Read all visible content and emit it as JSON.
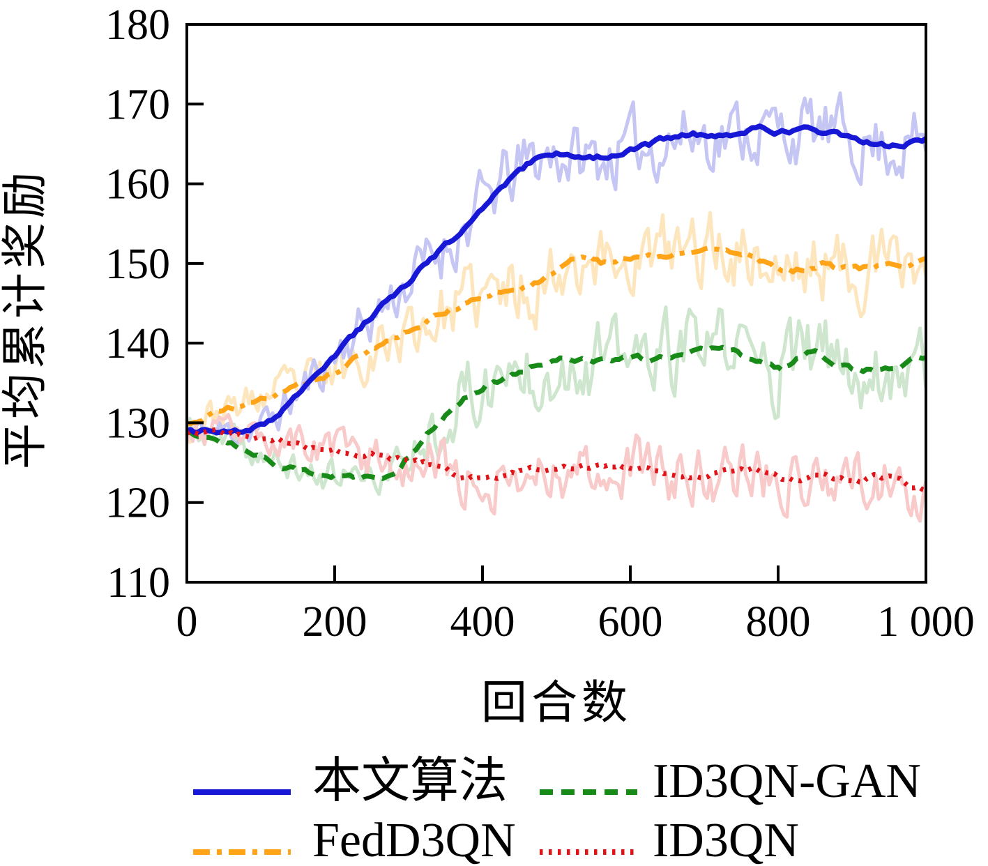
{
  "chart_data": {
    "type": "line",
    "title": "",
    "xlabel": "回合数",
    "ylabel": "平均累计奖励",
    "xlim": [
      0,
      1000
    ],
    "ylim": [
      110,
      180
    ],
    "grid": false,
    "frame": "full-box",
    "legend_position": "below-two-columns",
    "xticks": {
      "values": [
        0,
        200,
        400,
        600,
        800,
        1000
      ],
      "labels": [
        "0",
        "200",
        "400",
        "600",
        "800",
        "1 000"
      ]
    },
    "yticks": {
      "values": [
        110,
        120,
        130,
        140,
        150,
        160,
        170,
        180
      ],
      "labels": [
        "110",
        "120",
        "130",
        "140",
        "150",
        "160",
        "170",
        "180"
      ]
    },
    "series": [
      {
        "name": "本文算法",
        "style": "solid",
        "color": "#1717d6",
        "raw_color": "#c5c6f3",
        "keypoints": [
          [
            0,
            128.8
          ],
          [
            40,
            128.9
          ],
          [
            80,
            129.0
          ],
          [
            100,
            129.6
          ],
          [
            120,
            130.9
          ],
          [
            140,
            132.6
          ],
          [
            160,
            134.6
          ],
          [
            180,
            136.6
          ],
          [
            200,
            138.6
          ],
          [
            220,
            140.6
          ],
          [
            240,
            142.4
          ],
          [
            260,
            144.2
          ],
          [
            280,
            145.9
          ],
          [
            300,
            147.7
          ],
          [
            320,
            149.6
          ],
          [
            340,
            151.4
          ],
          [
            360,
            153.2
          ],
          [
            380,
            155.1
          ],
          [
            400,
            157.2
          ],
          [
            420,
            159.4
          ],
          [
            440,
            161.0
          ],
          [
            460,
            162.4
          ],
          [
            480,
            163.4
          ],
          [
            500,
            163.9
          ],
          [
            520,
            163.5
          ],
          [
            540,
            163.0
          ],
          [
            560,
            163.3
          ],
          [
            580,
            163.7
          ],
          [
            600,
            164.2
          ],
          [
            625,
            164.8
          ],
          [
            650,
            165.6
          ],
          [
            675,
            166.1
          ],
          [
            700,
            166.3
          ],
          [
            720,
            166.1
          ],
          [
            740,
            166.4
          ],
          [
            760,
            166.8
          ],
          [
            780,
            167.0
          ],
          [
            800,
            166.5
          ],
          [
            820,
            166.6
          ],
          [
            840,
            166.8
          ],
          [
            860,
            166.6
          ],
          [
            880,
            166.1
          ],
          [
            900,
            165.6
          ],
          [
            920,
            165.2
          ],
          [
            940,
            164.9
          ],
          [
            960,
            164.8
          ],
          [
            980,
            165.0
          ],
          [
            1000,
            165.5
          ]
        ],
        "raw_band": {
          "amp_start": 2.0,
          "amp_end": 4.3,
          "ramp": [
            80,
            380
          ]
        }
      },
      {
        "name": "FedD3QN",
        "style": "dashdot",
        "color": "#ffa417",
        "raw_color": "#fde6bd",
        "keypoints": [
          [
            0,
            129.8
          ],
          [
            40,
            131.1
          ],
          [
            80,
            132.4
          ],
          [
            120,
            133.7
          ],
          [
            160,
            134.8
          ],
          [
            200,
            136.2
          ],
          [
            230,
            138.2
          ],
          [
            250,
            139.5
          ],
          [
            280,
            140.5
          ],
          [
            310,
            141.9
          ],
          [
            340,
            143.5
          ],
          [
            370,
            144.7
          ],
          [
            400,
            145.6
          ],
          [
            430,
            146.4
          ],
          [
            460,
            147.1
          ],
          [
            480,
            147.8
          ],
          [
            500,
            149.2
          ],
          [
            515,
            150.6
          ],
          [
            530,
            151.2
          ],
          [
            545,
            151.0
          ],
          [
            560,
            150.3
          ],
          [
            580,
            150.4
          ],
          [
            600,
            150.8
          ],
          [
            620,
            151.0
          ],
          [
            640,
            150.8
          ],
          [
            660,
            151.4
          ],
          [
            680,
            151.5
          ],
          [
            700,
            151.9
          ],
          [
            720,
            152.2
          ],
          [
            740,
            151.7
          ],
          [
            760,
            151.2
          ],
          [
            780,
            150.1
          ],
          [
            800,
            149.1
          ],
          [
            820,
            148.9
          ],
          [
            840,
            149.4
          ],
          [
            860,
            150.0
          ],
          [
            880,
            149.3
          ],
          [
            900,
            149.7
          ],
          [
            920,
            149.4
          ],
          [
            940,
            149.7
          ],
          [
            960,
            149.5
          ],
          [
            980,
            150.0
          ],
          [
            1000,
            150.5
          ]
        ],
        "raw_band": {
          "amp_start": 2.2,
          "amp_end": 4.6,
          "ramp": [
            80,
            420
          ]
        }
      },
      {
        "name": "ID3QN-GAN",
        "style": "dashed",
        "color": "#188a18",
        "raw_color": "#cde6cd",
        "keypoints": [
          [
            0,
            128.9
          ],
          [
            30,
            128.3
          ],
          [
            60,
            127.3
          ],
          [
            90,
            126.1
          ],
          [
            120,
            124.9
          ],
          [
            150,
            124.0
          ],
          [
            180,
            123.5
          ],
          [
            210,
            123.3
          ],
          [
            240,
            123.1
          ],
          [
            265,
            123.2
          ],
          [
            285,
            124.3
          ],
          [
            305,
            126.3
          ],
          [
            325,
            128.6
          ],
          [
            345,
            130.6
          ],
          [
            365,
            132.0
          ],
          [
            385,
            133.7
          ],
          [
            405,
            134.8
          ],
          [
            425,
            135.5
          ],
          [
            445,
            136.2
          ],
          [
            465,
            137.0
          ],
          [
            485,
            137.7
          ],
          [
            505,
            138.0
          ],
          [
            525,
            138.0
          ],
          [
            545,
            137.7
          ],
          [
            565,
            137.8
          ],
          [
            585,
            138.0
          ],
          [
            605,
            138.3
          ],
          [
            625,
            138.0
          ],
          [
            645,
            138.3
          ],
          [
            665,
            138.6
          ],
          [
            685,
            139.0
          ],
          [
            705,
            139.4
          ],
          [
            725,
            139.7
          ],
          [
            745,
            139.1
          ],
          [
            765,
            137.8
          ],
          [
            785,
            137.0
          ],
          [
            805,
            136.7
          ],
          [
            820,
            137.3
          ],
          [
            835,
            138.4
          ],
          [
            850,
            139.2
          ],
          [
            865,
            138.3
          ],
          [
            880,
            137.3
          ],
          [
            895,
            136.8
          ],
          [
            915,
            136.4
          ],
          [
            935,
            136.7
          ],
          [
            955,
            137.2
          ],
          [
            975,
            137.7
          ],
          [
            1000,
            138.3
          ]
        ],
        "raw_band": {
          "amp_start": 2.0,
          "amp_end": 5.0,
          "ramp": [
            260,
            380
          ]
        }
      },
      {
        "name": "ID3QN",
        "style": "dotted",
        "color": "#e01318",
        "raw_color": "#f8caca",
        "keypoints": [
          [
            0,
            128.9
          ],
          [
            40,
            128.8
          ],
          [
            80,
            128.4
          ],
          [
            120,
            127.9
          ],
          [
            160,
            127.1
          ],
          [
            200,
            126.5
          ],
          [
            240,
            126.1
          ],
          [
            280,
            125.5
          ],
          [
            320,
            124.9
          ],
          [
            350,
            123.9
          ],
          [
            380,
            123.3
          ],
          [
            410,
            123.2
          ],
          [
            440,
            123.6
          ],
          [
            470,
            124.2
          ],
          [
            500,
            124.4
          ],
          [
            540,
            124.4
          ],
          [
            580,
            124.5
          ],
          [
            610,
            124.5
          ],
          [
            640,
            123.9
          ],
          [
            670,
            123.2
          ],
          [
            700,
            123.1
          ],
          [
            730,
            124.0
          ],
          [
            760,
            124.2
          ],
          [
            790,
            123.8
          ],
          [
            810,
            123.1
          ],
          [
            830,
            123.1
          ],
          [
            850,
            123.4
          ],
          [
            870,
            123.3
          ],
          [
            890,
            122.9
          ],
          [
            910,
            122.8
          ],
          [
            930,
            123.2
          ],
          [
            950,
            123.0
          ],
          [
            970,
            122.4
          ],
          [
            985,
            122.0
          ],
          [
            1000,
            121.4
          ]
        ],
        "raw_band": {
          "amp_start": 1.8,
          "amp_end": 3.7,
          "ramp": [
            80,
            380
          ]
        }
      }
    ]
  },
  "legend": {
    "rows": [
      {
        "left_index": 0,
        "right_index": 2
      },
      {
        "left_index": 1,
        "right_index": 3
      }
    ]
  }
}
